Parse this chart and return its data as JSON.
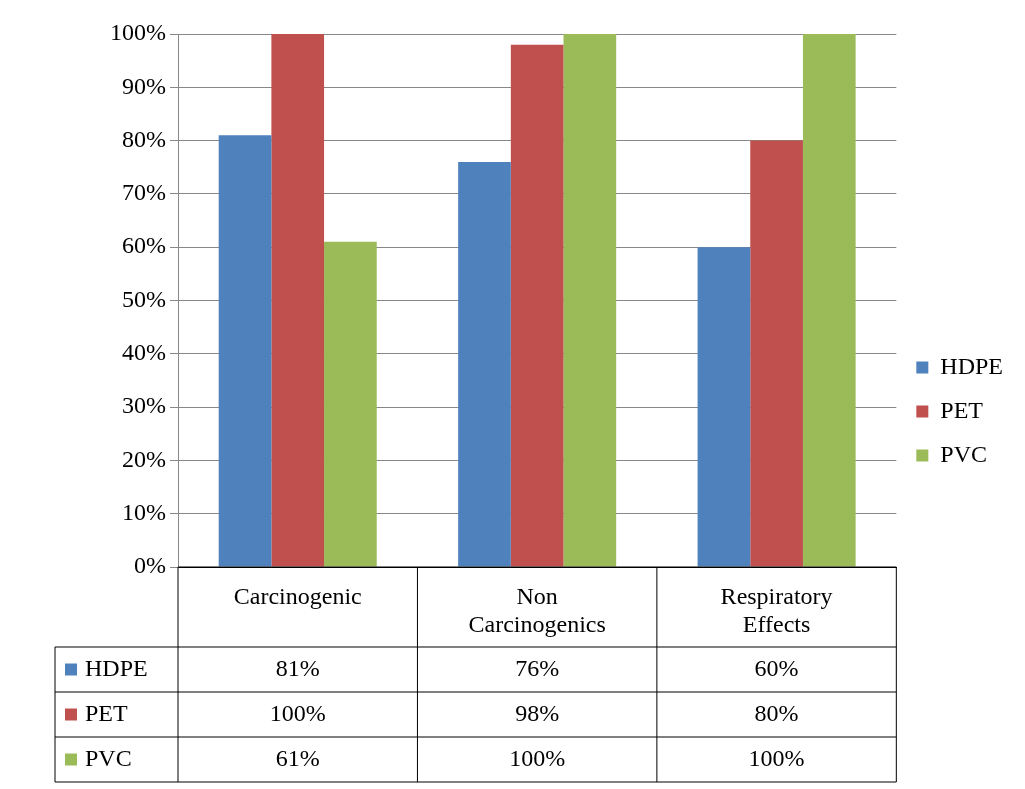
{
  "chart_data": {
    "type": "bar",
    "categories": [
      "Carcinogenic",
      "Non Carcinogenics",
      "Respiratory Effects"
    ],
    "series": [
      {
        "name": "HDPE",
        "color": "#4f81bd",
        "values": [
          81,
          76,
          60
        ],
        "value_labels": [
          "81%",
          "76%",
          "60%"
        ]
      },
      {
        "name": "PET",
        "color": "#c0504d",
        "values": [
          100,
          98,
          80
        ],
        "value_labels": [
          "100%",
          "98%",
          "80%"
        ]
      },
      {
        "name": "PVC",
        "color": "#9bbb59",
        "values": [
          61,
          100,
          100
        ],
        "value_labels": [
          "61%",
          "100%",
          "100%"
        ]
      }
    ],
    "ylim": [
      0,
      100
    ],
    "yticks": [
      {
        "value": 0,
        "label": "0%"
      },
      {
        "value": 10,
        "label": "10%"
      },
      {
        "value": 20,
        "label": "20%"
      },
      {
        "value": 30,
        "label": "30%"
      },
      {
        "value": 40,
        "label": "40%"
      },
      {
        "value": 50,
        "label": "50%"
      },
      {
        "value": 60,
        "label": "60%"
      },
      {
        "value": 70,
        "label": "70%"
      },
      {
        "value": 80,
        "label": "80%"
      },
      {
        "value": 90,
        "label": "90%"
      },
      {
        "value": 100,
        "label": "100%"
      }
    ],
    "grid": "y",
    "legend": "right"
  }
}
